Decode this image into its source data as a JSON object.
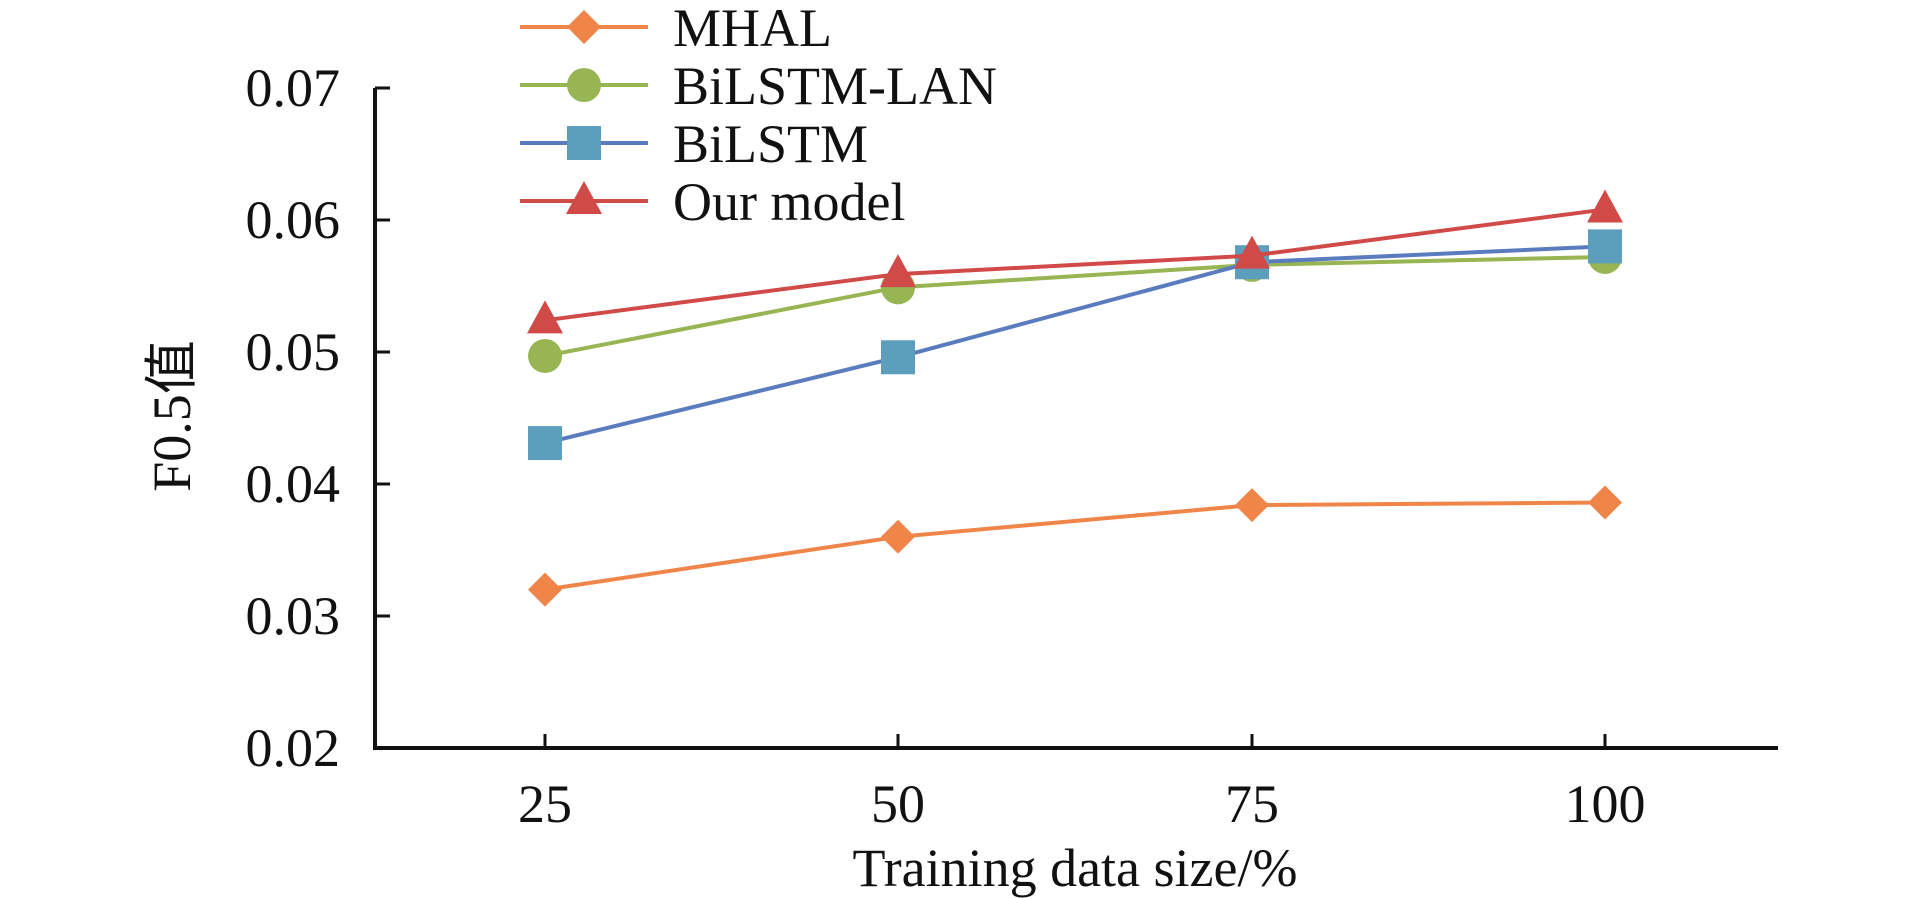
{
  "chart_data": {
    "type": "line",
    "xlabel": "Training data size/%",
    "ylabel": "F0.5值",
    "x": [
      25,
      50,
      75,
      100
    ],
    "x_tick_labels": [
      "25",
      "50",
      "75",
      "100"
    ],
    "ylim": [
      0.02,
      0.07
    ],
    "y_ticks": [
      0.02,
      0.03,
      0.04,
      0.05,
      0.06,
      0.07
    ],
    "y_tick_labels": [
      "0.02",
      "0.03",
      "0.04",
      "0.05",
      "0.06",
      "0.07"
    ],
    "grid": false,
    "legend_position": "top-left",
    "series": [
      {
        "name": "MHAL",
        "values": [
          0.032,
          0.036,
          0.0384,
          0.0386
        ],
        "color": "#f0854a",
        "marker": "diamond"
      },
      {
        "name": "BiLSTM-LAN",
        "values": [
          0.0497,
          0.0549,
          0.0566,
          0.0572
        ],
        "color": "#97b552",
        "marker": "circle"
      },
      {
        "name": "BiLSTM",
        "values": [
          0.0431,
          0.0496,
          0.0568,
          0.058
        ],
        "color": "#5a7cbf",
        "marker_color": "#5c9ebb",
        "marker": "square"
      },
      {
        "name": "Our model",
        "values": [
          0.0524,
          0.0559,
          0.0573,
          0.0608
        ],
        "color": "#d04a47",
        "marker": "triangle"
      }
    ]
  }
}
